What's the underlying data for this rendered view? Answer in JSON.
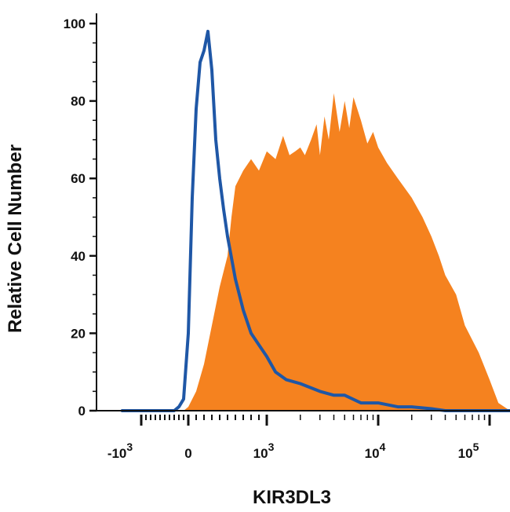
{
  "chart_data": {
    "type": "area",
    "title": "",
    "xlabel": "KIR3DL3",
    "ylabel": "Relative Cell Number",
    "x_scale": "biexponential",
    "xlim": [
      -2000,
      200000
    ],
    "ylim": [
      0,
      100
    ],
    "grid": false,
    "legend": "none",
    "y_ticks": [
      "0",
      "20",
      "40",
      "60",
      "80",
      "100"
    ],
    "x_tick_labels": [
      {
        "base": "-10",
        "exp": "3"
      },
      {
        "base": "0",
        "exp": ""
      },
      {
        "base": "10",
        "exp": "3"
      },
      {
        "base": "10",
        "exp": "4"
      },
      {
        "base": "10",
        "exp": "5"
      }
    ],
    "series": [
      {
        "style": "outline",
        "color": "#1f57a6",
        "x": [
          -2000,
          -300,
          -200,
          -100,
          0,
          50,
          100,
          150,
          200,
          250,
          300,
          350,
          400,
          450,
          500,
          600,
          700,
          800,
          900,
          1000,
          1200,
          1500,
          2000,
          3000,
          4000,
          5000,
          7000,
          10000,
          15000,
          20000,
          30000,
          40000,
          60000,
          100000,
          200000
        ],
        "y": [
          0,
          0,
          1,
          3,
          20,
          55,
          78,
          90,
          93,
          98,
          88,
          70,
          60,
          52,
          45,
          34,
          26,
          20,
          17,
          14,
          10,
          8,
          7,
          5,
          4,
          4,
          2,
          2,
          1,
          1,
          0.5,
          0,
          0,
          0,
          0
        ]
      },
      {
        "style": "filled",
        "color": "#f5821f",
        "x": [
          -2000,
          -100,
          0,
          100,
          200,
          300,
          400,
          500,
          550,
          600,
          700,
          800,
          900,
          1000,
          1200,
          1400,
          1600,
          1800,
          2000,
          2200,
          2500,
          2800,
          3000,
          3300,
          3600,
          4000,
          4500,
          5000,
          5500,
          6000,
          7000,
          8000,
          9000,
          10000,
          12000,
          15000,
          20000,
          25000,
          30000,
          35000,
          40000,
          50000,
          60000,
          80000,
          100000,
          120000,
          200000
        ],
        "y": [
          0,
          0,
          1,
          5,
          12,
          22,
          32,
          40,
          50,
          58,
          62,
          65,
          62,
          67,
          65,
          71,
          66,
          67,
          68,
          66,
          70,
          74,
          66,
          76,
          70,
          82,
          72,
          80,
          73,
          81,
          75,
          69,
          72,
          68,
          64,
          60,
          55,
          50,
          45,
          40,
          35,
          30,
          22,
          15,
          8,
          2,
          0
        ]
      }
    ]
  }
}
